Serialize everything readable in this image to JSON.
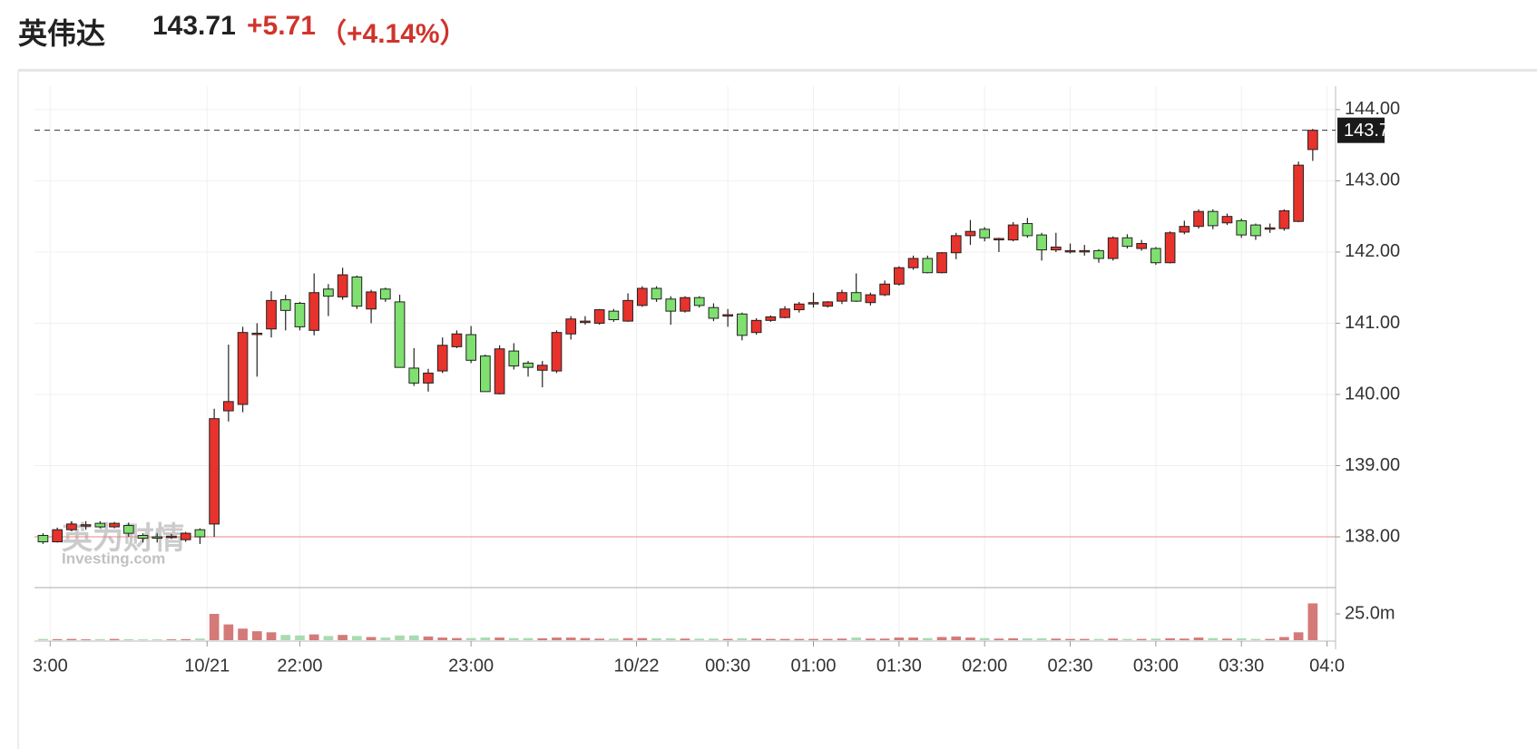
{
  "header": {
    "name": "英伟达",
    "price": "143.71",
    "change": "+5.71",
    "change_pct": "（+4.14%）"
  },
  "watermark": {
    "brand": "英为财情",
    "site": "Investing.com"
  },
  "chart_data": {
    "type": "candlestick",
    "up_color": "#e8322c",
    "down_color": "#7fe06f",
    "volume_up_color": "#d47a78",
    "volume_down_color": "#a9dbb0",
    "open": [
      138.02,
      137.93,
      138.1,
      138.17,
      138.19,
      138.14,
      138.16,
      138.02,
      138.0,
      138.01,
      137.96,
      138.1,
      138.18,
      139.77,
      139.86,
      140.85,
      140.92,
      141.33,
      141.28,
      140.9,
      141.48,
      141.37,
      141.65,
      141.2,
      141.48,
      141.3,
      140.37,
      140.16,
      140.33,
      140.67,
      140.84,
      140.54,
      140.01,
      140.61,
      140.44,
      140.34,
      140.33,
      140.85,
      141.01,
      141.0,
      141.17,
      141.03,
      141.25,
      141.49,
      141.34,
      141.17,
      141.36,
      141.22,
      141.12,
      141.13,
      140.87,
      141.04,
      141.08,
      141.19,
      141.29,
      141.24,
      141.31,
      141.43,
      141.29,
      141.4,
      141.55,
      141.78,
      141.91,
      141.71,
      141.99,
      142.23,
      142.32,
      142.19,
      142.17,
      142.4,
      142.24,
      142.03,
      142.02,
      142.02,
      142.02,
      141.91,
      142.2,
      142.05,
      142.05,
      141.85,
      142.28,
      142.36,
      142.57,
      142.41,
      142.44,
      142.38,
      142.34,
      142.33,
      142.43,
      143.44
    ],
    "high": [
      138.05,
      138.13,
      138.22,
      138.22,
      138.22,
      138.21,
      138.2,
      138.05,
      138.05,
      138.04,
      138.07,
      138.12,
      139.8,
      140.7,
      140.95,
      141.0,
      141.45,
      141.4,
      141.3,
      141.7,
      141.55,
      141.78,
      141.67,
      141.47,
      141.5,
      141.4,
      140.65,
      140.36,
      140.8,
      140.9,
      140.96,
      140.56,
      140.69,
      140.72,
      140.47,
      140.47,
      140.9,
      141.1,
      141.1,
      141.2,
      141.2,
      141.42,
      141.52,
      141.52,
      141.38,
      141.38,
      141.38,
      141.28,
      141.2,
      141.15,
      141.07,
      141.11,
      141.24,
      141.3,
      141.43,
      141.31,
      141.47,
      141.7,
      141.43,
      141.6,
      141.8,
      141.95,
      141.95,
      142.0,
      142.27,
      142.45,
      142.35,
      142.2,
      142.42,
      142.48,
      142.27,
      142.27,
      142.12,
      142.1,
      142.04,
      142.22,
      142.25,
      142.17,
      142.07,
      142.29,
      142.44,
      142.6,
      142.6,
      142.54,
      142.47,
      142.4,
      142.4,
      142.6,
      143.27,
      143.73
    ],
    "low": [
      137.9,
      137.92,
      138.08,
      138.1,
      138.12,
      138.12,
      138.0,
      137.92,
      137.92,
      137.97,
      137.93,
      137.9,
      138.0,
      139.62,
      139.75,
      140.25,
      140.8,
      140.9,
      140.9,
      140.83,
      141.1,
      141.33,
      141.2,
      141.0,
      141.3,
      140.38,
      140.12,
      140.04,
      140.3,
      140.65,
      140.44,
      140.04,
      140.0,
      140.35,
      140.25,
      140.1,
      140.3,
      140.77,
      140.98,
      140.98,
      141.02,
      141.02,
      141.23,
      141.3,
      140.98,
      141.15,
      141.22,
      141.03,
      140.95,
      140.76,
      140.84,
      141.02,
      141.07,
      141.15,
      141.22,
      141.22,
      141.27,
      141.3,
      141.25,
      141.38,
      141.53,
      141.75,
      141.7,
      141.7,
      141.9,
      142.1,
      142.15,
      142.0,
      142.15,
      142.2,
      141.88,
      142.0,
      141.98,
      141.95,
      141.85,
      141.88,
      142.05,
      142.02,
      141.82,
      141.84,
      142.25,
      142.33,
      142.32,
      142.38,
      142.2,
      142.17,
      142.27,
      142.3,
      142.42,
      143.28
    ],
    "close": [
      137.93,
      138.1,
      138.18,
      138.17,
      138.14,
      138.19,
      138.05,
      137.98,
      137.98,
      138.01,
      138.05,
      138.0,
      139.66,
      139.9,
      140.87,
      140.86,
      141.32,
      141.18,
      140.95,
      141.43,
      141.38,
      141.68,
      141.24,
      141.44,
      141.34,
      140.38,
      140.16,
      140.3,
      140.69,
      140.85,
      140.48,
      140.04,
      140.64,
      140.4,
      140.38,
      140.41,
      140.87,
      141.06,
      141.03,
      141.19,
      141.05,
      141.32,
      141.49,
      141.34,
      141.17,
      141.36,
      141.25,
      141.07,
      141.12,
      140.83,
      141.04,
      141.09,
      141.2,
      141.27,
      141.29,
      141.3,
      141.43,
      141.31,
      141.4,
      141.55,
      141.78,
      141.91,
      141.71,
      141.99,
      142.23,
      142.29,
      142.2,
      142.19,
      142.38,
      142.23,
      142.03,
      142.07,
      142.02,
      142.02,
      141.91,
      142.2,
      142.08,
      142.12,
      141.85,
      142.27,
      142.36,
      142.57,
      142.37,
      142.5,
      142.24,
      142.23,
      142.34,
      142.58,
      143.22,
      143.71
    ],
    "volume": [
      1.2,
      1.0,
      1.2,
      0.8,
      1.0,
      1.2,
      1.0,
      0.8,
      0.8,
      0.8,
      1.0,
      1.5,
      25,
      15,
      11,
      8.5,
      7.5,
      5,
      4.5,
      5.5,
      4,
      5,
      4,
      3,
      2.5,
      4.5,
      4.5,
      3.5,
      2.5,
      2,
      2,
      2.5,
      2.5,
      2,
      2,
      1.8,
      2.5,
      2.5,
      2,
      1.5,
      1.5,
      2,
      2,
      1.8,
      1.8,
      1.5,
      1.5,
      1.5,
      1.2,
      1.8,
      1.5,
      1.2,
      1.2,
      1.2,
      1.2,
      1.2,
      1.5,
      2.5,
      1.5,
      1.5,
      2.5,
      2.5,
      2,
      3,
      3.5,
      2.5,
      2,
      1.5,
      1.8,
      1.8,
      1.8,
      1.5,
      1.2,
      1.2,
      1.2,
      1.5,
      1.2,
      1.2,
      1.5,
      1.8,
      1.5,
      2.5,
      2,
      1.5,
      1.8,
      1.2,
      1.2,
      3,
      7.5,
      35
    ],
    "xlim": [
      -0.6,
      90.6
    ],
    "xticks": [
      {
        "value": 0.5,
        "label": "3:00"
      },
      {
        "value": 11.5,
        "label": "10/21"
      },
      {
        "value": 18,
        "label": "22:00"
      },
      {
        "value": 30,
        "label": "23:00"
      },
      {
        "value": 41.6,
        "label": "10/22"
      },
      {
        "value": 48,
        "label": "00:30"
      },
      {
        "value": 54,
        "label": "01:00"
      },
      {
        "value": 60,
        "label": "01:30"
      },
      {
        "value": 66,
        "label": "02:00"
      },
      {
        "value": 72,
        "label": "02:30"
      },
      {
        "value": 78,
        "label": "03:00"
      },
      {
        "value": 84,
        "label": "03:30"
      },
      {
        "value": 90,
        "label": "04:0"
      }
    ],
    "ylim": [
      137.3,
      144.33
    ],
    "yticks": [
      {
        "value": 138,
        "label": "138.00"
      },
      {
        "value": 139,
        "label": "139.00"
      },
      {
        "value": 140,
        "label": "140.00"
      },
      {
        "value": 141,
        "label": "141.00"
      },
      {
        "value": 142,
        "label": "142.00"
      },
      {
        "value": 143,
        "label": "143.00"
      },
      {
        "value": 144,
        "label": "144.00"
      }
    ],
    "volume_lim": [
      0,
      50
    ],
    "volume_ticks": [
      {
        "value": 25,
        "label": "25.0m"
      }
    ],
    "last_price": 143.71,
    "prev_close": 138,
    "grid": true
  }
}
